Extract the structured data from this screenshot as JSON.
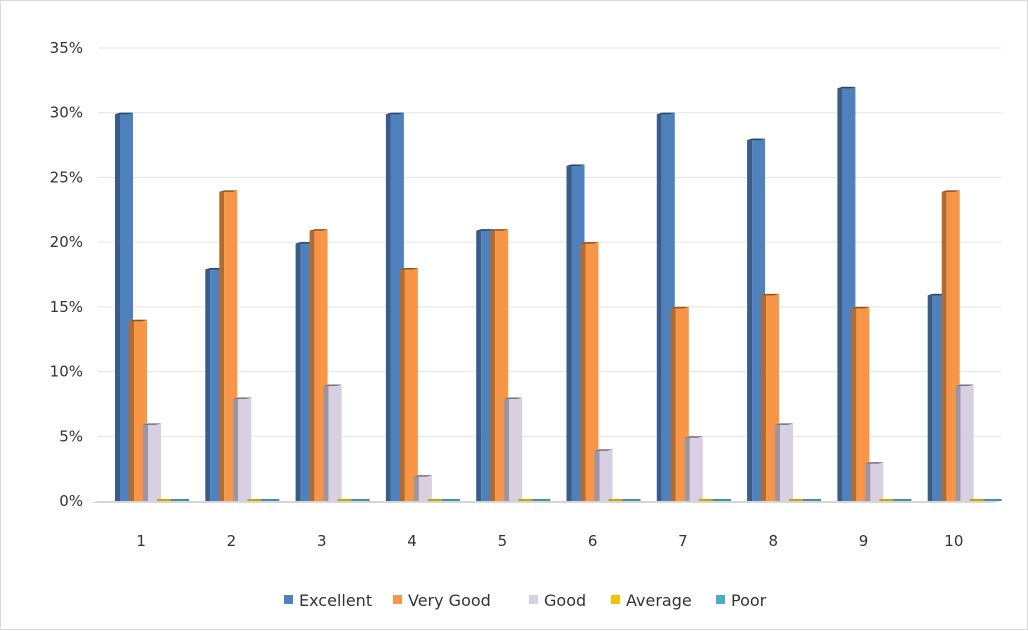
{
  "chart_data": {
    "type": "bar",
    "categories": [
      "1",
      "2",
      "3",
      "4",
      "5",
      "6",
      "7",
      "8",
      "9",
      "10"
    ],
    "series": [
      {
        "name": "Excellent",
        "color": "#4f81bd",
        "values": [
          30,
          18,
          20,
          30,
          21,
          26,
          30,
          28,
          32,
          16
        ]
      },
      {
        "name": "Very Good",
        "color": "#f79646",
        "values": [
          14,
          24,
          21,
          18,
          21,
          20,
          15,
          16,
          15,
          24
        ]
      },
      {
        "name": "Good",
        "color": "#d9cfe3",
        "values": [
          6,
          8,
          9,
          2,
          8,
          4,
          5,
          6,
          3,
          9
        ]
      },
      {
        "name": "Average",
        "color": "#f2c200",
        "values": [
          0,
          0,
          0,
          0,
          0,
          0,
          0,
          0,
          0,
          0
        ]
      },
      {
        "name": "Poor",
        "color": "#4bacc6",
        "values": [
          0,
          0,
          0,
          0,
          0,
          0,
          0,
          0,
          0,
          0
        ]
      }
    ],
    "y_ticks": [
      "0%",
      "5%",
      "10%",
      "15%",
      "20%",
      "25%",
      "30%",
      "35%"
    ],
    "ylim": [
      0,
      35
    ],
    "grid": true,
    "legend_position": "bottom",
    "title": "",
    "xlabel": "",
    "ylabel": ""
  }
}
